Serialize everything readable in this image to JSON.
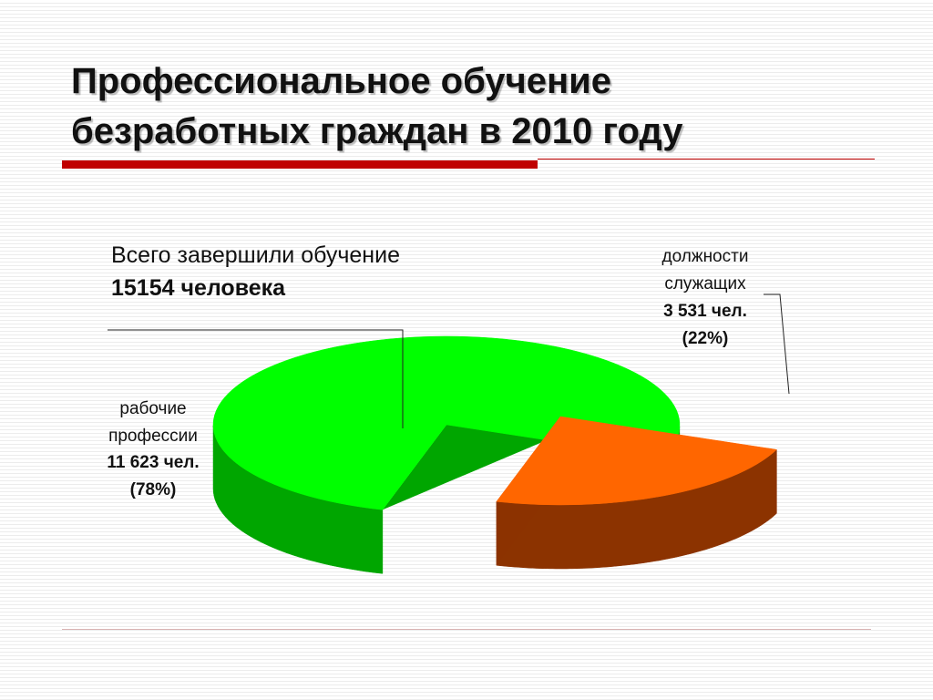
{
  "title_lines": [
    "Профессиональное обучение",
    "безработных граждан в 2010 году"
  ],
  "summary": {
    "line1": "Всего завершили обучение",
    "line2": "15154 человека"
  },
  "chart_data": {
    "type": "pie",
    "style": "3d-exploded",
    "slices": [
      {
        "label_lines": [
          "рабочие",
          "профессии"
        ],
        "value": 11623,
        "value_text": "11 623 чел.",
        "percent_text": "(78%)",
        "percent": 78,
        "color": "#00ff00",
        "side_color": "#00a600"
      },
      {
        "label_lines": [
          "должности",
          "служащих"
        ],
        "value": 3531,
        "value_text": "3 531 чел.",
        "percent_text": "(22%)",
        "percent": 22,
        "color": "#ff6600",
        "side_color": "#8c3300"
      }
    ],
    "legend": "none"
  },
  "colors": {
    "title_rule": "#c00000",
    "text": "#111111"
  }
}
